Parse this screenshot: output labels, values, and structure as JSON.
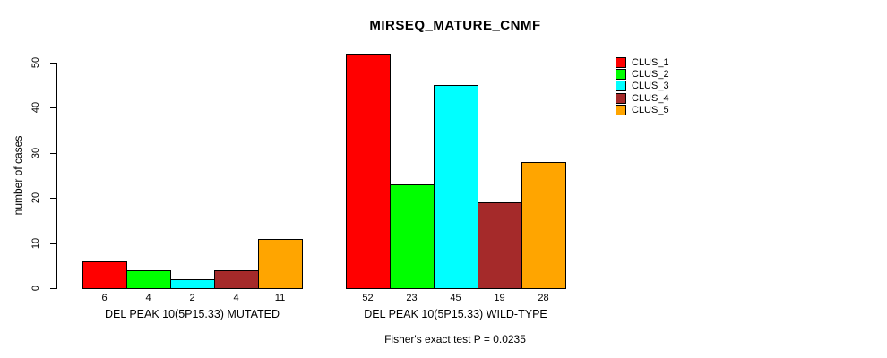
{
  "chart_data": {
    "type": "bar",
    "title": "MIRSEQ_MATURE_CNMF",
    "ylabel": "number of cases",
    "ylim": [
      0,
      50
    ],
    "yticks": [
      0,
      10,
      20,
      30,
      40,
      50
    ],
    "grid": false,
    "legend_position": "top-right",
    "legend": [
      {
        "name": "CLUS_1",
        "color": "#ff0000"
      },
      {
        "name": "CLUS_2",
        "color": "#00ff00"
      },
      {
        "name": "CLUS_3",
        "color": "#00ffff"
      },
      {
        "name": "CLUS_4",
        "color": "#a52a2a"
      },
      {
        "name": "CLUS_5",
        "color": "#ffa500"
      }
    ],
    "groups": [
      {
        "label": "DEL PEAK 10(5P15.33) MUTATED",
        "values": [
          6,
          4,
          2,
          4,
          11
        ]
      },
      {
        "label": "DEL PEAK 10(5P15.33) WILD-TYPE",
        "values": [
          52,
          23,
          45,
          19,
          28
        ]
      }
    ],
    "footer": "Fisher's exact test P = 0.0235"
  }
}
